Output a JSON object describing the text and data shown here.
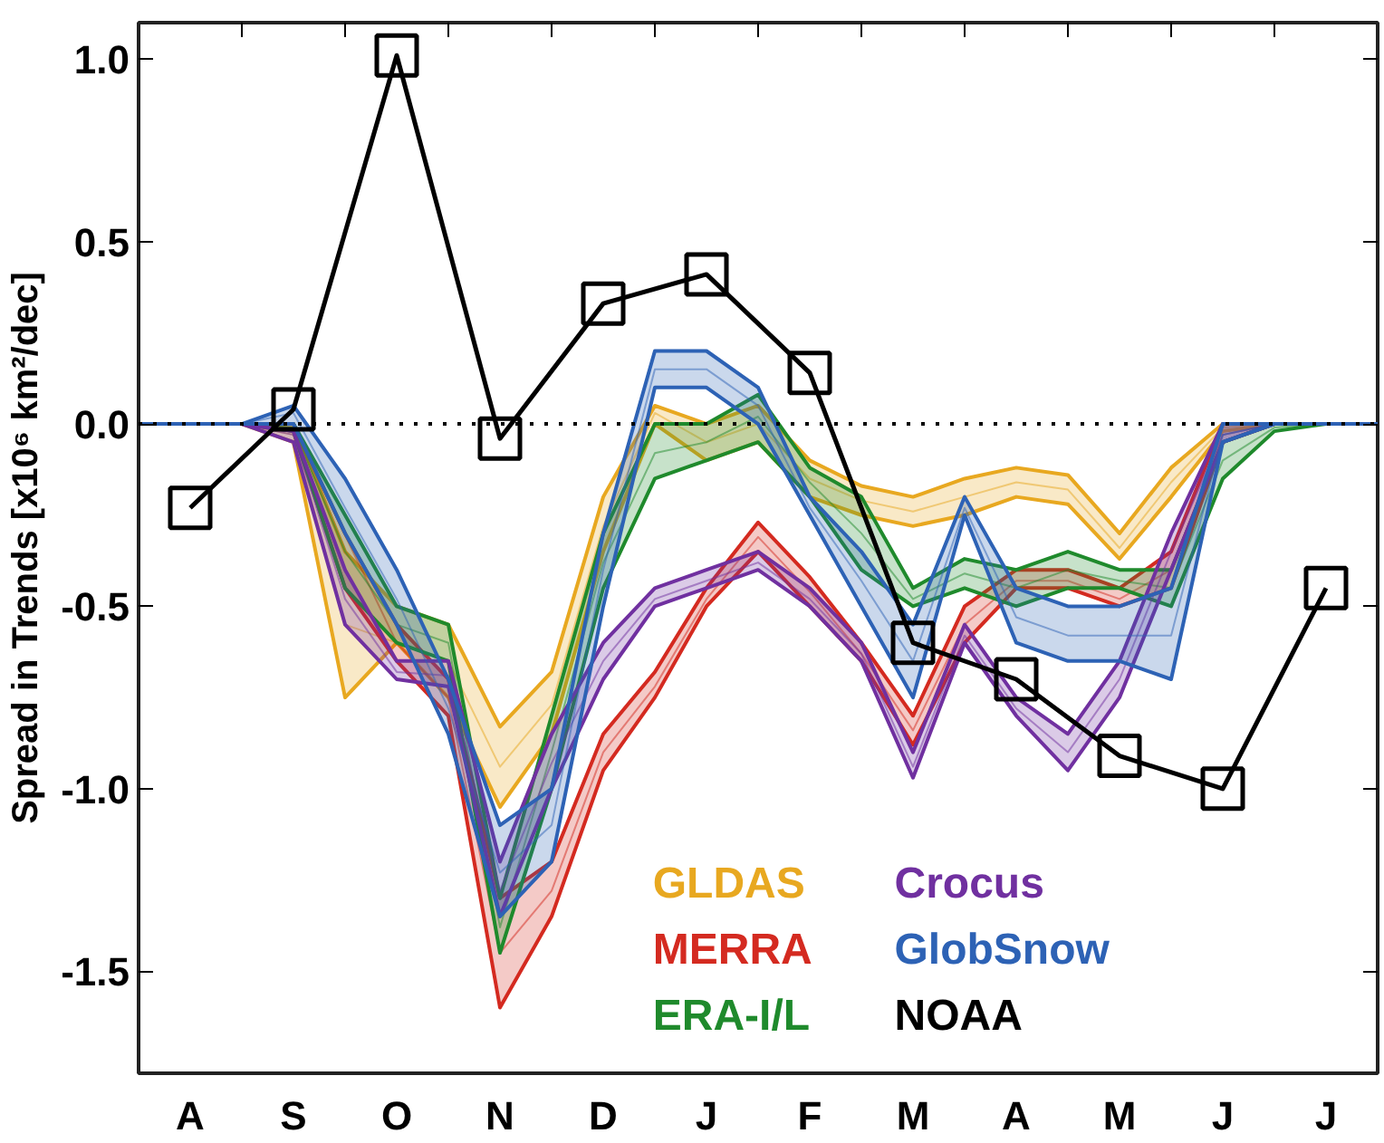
{
  "chart_data": {
    "type": "line",
    "ylabel": "Spread in Trends [x10⁶ km²/dec]",
    "categories": [
      null,
      "A",
      null,
      "S",
      null,
      "O",
      null,
      "N",
      null,
      "D",
      null,
      "J",
      null,
      "F",
      null,
      "M",
      null,
      "A",
      null,
      "M",
      null,
      "J",
      null,
      "J",
      null
    ],
    "ylim": [
      -1.78,
      1.1
    ],
    "yticks": [
      {
        "value": 1.0,
        "label": "1.0"
      },
      {
        "value": 0.5,
        "label": "0.5"
      },
      {
        "value": 0.0,
        "label": "0.0"
      },
      {
        "value": -0.5,
        "label": "-0.5"
      },
      {
        "value": -1.0,
        "label": "-1.0"
      },
      {
        "value": -1.5,
        "label": "-1.5"
      }
    ],
    "grid": false,
    "legend": "bottom right",
    "ref_lines": [
      {
        "axis": "y",
        "value": 0,
        "line_style": "dotted",
        "color": "#000000"
      }
    ],
    "series": [
      {
        "name": "GLDAS",
        "color": "#e8a820",
        "values": [
          0,
          0,
          0,
          -0.03,
          -0.55,
          null,
          -0.65,
          -0.94,
          -0.77,
          -0.28,
          0.03,
          -0.05,
          0,
          -0.15,
          -0.21,
          -0.24,
          -0.2,
          -0.16,
          -0.18,
          -0.34,
          -0.16,
          -0.01,
          0,
          null,
          null
        ],
        "lower": [
          0,
          0,
          0,
          -0.05,
          -0.75,
          -0.6,
          -0.75,
          -1.05,
          -0.85,
          -0.35,
          0.0,
          -0.1,
          -0.05,
          -0.2,
          -0.25,
          -0.28,
          -0.25,
          -0.2,
          -0.22,
          -0.37,
          -0.2,
          -0.02,
          0,
          0,
          0
        ],
        "upper": [
          0,
          0,
          0,
          0,
          -0.35,
          -0.5,
          -0.55,
          -0.83,
          -0.68,
          -0.2,
          0.05,
          0,
          0.05,
          -0.1,
          -0.17,
          -0.2,
          -0.15,
          -0.12,
          -0.14,
          -0.3,
          -0.12,
          0,
          0,
          0,
          0
        ]
      },
      {
        "name": "MERRA",
        "color": "#d42a20",
        "values": [
          0,
          0,
          0,
          -0.01,
          null,
          -0.6,
          -0.75,
          -1.45,
          -1.28,
          -0.9,
          -0.72,
          -0.48,
          -0.31,
          -0.46,
          -0.63,
          -0.84,
          -0.55,
          -0.43,
          -0.43,
          -0.48,
          -0.4,
          -0.03,
          0,
          null,
          null
        ],
        "lower": [
          0,
          0,
          0,
          -0.02,
          -0.45,
          -0.65,
          -0.8,
          -1.6,
          -1.35,
          -0.95,
          -0.75,
          -0.5,
          -0.35,
          -0.5,
          -0.65,
          -0.88,
          -0.6,
          -0.45,
          -0.45,
          -0.5,
          -0.45,
          -0.05,
          0,
          0,
          0
        ],
        "upper": [
          0,
          0,
          0,
          0,
          -0.3,
          -0.55,
          -0.7,
          -1.3,
          -1.2,
          -0.85,
          -0.68,
          -0.45,
          -0.27,
          -0.42,
          -0.6,
          -0.8,
          -0.5,
          -0.4,
          -0.4,
          -0.45,
          -0.35,
          0,
          0,
          0,
          0
        ]
      },
      {
        "name": "ERA-I/L",
        "color": "#1f8a2c",
        "values": [
          0,
          0,
          0,
          -0.01,
          -0.35,
          -0.55,
          -0.6,
          -1.38,
          -0.9,
          -0.38,
          -0.08,
          -0.05,
          0.02,
          -0.16,
          -0.3,
          -0.48,
          -0.41,
          -0.45,
          -0.4,
          -0.43,
          -0.45,
          -0.1,
          -0.01,
          0,
          0
        ],
        "lower": [
          0,
          0,
          0,
          -0.02,
          -0.45,
          -0.6,
          -0.65,
          -1.45,
          -1.0,
          -0.45,
          -0.15,
          -0.1,
          -0.05,
          -0.2,
          -0.4,
          -0.5,
          -0.45,
          -0.5,
          -0.45,
          -0.45,
          -0.5,
          -0.15,
          -0.02,
          0,
          0
        ],
        "upper": [
          0,
          0,
          0,
          0,
          -0.25,
          -0.5,
          -0.55,
          -1.3,
          -0.8,
          -0.3,
          0,
          0,
          0.08,
          -0.12,
          -0.2,
          -0.45,
          -0.37,
          -0.4,
          -0.35,
          -0.4,
          -0.4,
          -0.05,
          0,
          0,
          0
        ]
      },
      {
        "name": "Crocus",
        "color": "#7030a0",
        "values": [
          0,
          0,
          0,
          -0.03,
          -0.48,
          -0.68,
          -0.69,
          -1.28,
          -0.93,
          -0.65,
          -0.48,
          -0.43,
          -0.38,
          -0.48,
          -0.63,
          -0.94,
          -0.58,
          -0.78,
          -0.9,
          -0.7,
          -0.35,
          -0.03,
          0,
          0,
          0
        ],
        "lower": [
          0,
          0,
          0,
          -0.05,
          -0.55,
          -0.7,
          -0.72,
          -1.35,
          -1.0,
          -0.7,
          -0.5,
          -0.45,
          -0.4,
          -0.5,
          -0.65,
          -0.97,
          -0.6,
          -0.8,
          -0.95,
          -0.75,
          -0.4,
          -0.05,
          0,
          0,
          0
        ],
        "upper": [
          0,
          0,
          0,
          -0.02,
          -0.4,
          -0.65,
          -0.65,
          -1.2,
          -0.85,
          -0.6,
          -0.45,
          -0.4,
          -0.35,
          -0.45,
          -0.6,
          -0.9,
          -0.55,
          -0.75,
          -0.85,
          -0.65,
          -0.3,
          0,
          0,
          0,
          0
        ]
      },
      {
        "name": "GlobSnow",
        "color": "#2d62b5",
        "values": [
          0,
          0,
          0,
          0.03,
          -0.23,
          -0.48,
          -0.78,
          -1.23,
          -1.1,
          -0.4,
          0.15,
          0.15,
          0.05,
          -0.23,
          -0.43,
          -0.65,
          -0.23,
          -0.53,
          -0.58,
          -0.58,
          -0.58,
          -0.03,
          0,
          0,
          0
        ],
        "lower": [
          0,
          0,
          0,
          0,
          -0.3,
          -0.55,
          -0.85,
          -1.35,
          -1.2,
          -0.5,
          0.1,
          0.1,
          0,
          -0.25,
          -0.5,
          -0.75,
          -0.25,
          -0.6,
          -0.65,
          -0.65,
          -0.7,
          -0.05,
          0,
          0,
          0
        ],
        "upper": [
          0,
          0,
          0,
          0.05,
          -0.15,
          -0.4,
          -0.7,
          -1.1,
          -1.0,
          -0.3,
          0.2,
          0.2,
          0.1,
          -0.2,
          -0.35,
          -0.55,
          -0.2,
          -0.45,
          -0.5,
          -0.5,
          -0.45,
          0,
          0,
          0,
          0
        ]
      },
      {
        "name": "NOAA",
        "color": "#000000",
        "marker": "square",
        "values": [
          null,
          -0.23,
          null,
          0.04,
          null,
          1.01,
          null,
          -0.04,
          null,
          0.33,
          null,
          0.41,
          null,
          0.14,
          null,
          -0.6,
          null,
          -0.7,
          null,
          -0.91,
          null,
          -1.0,
          null,
          -0.45,
          null
        ]
      }
    ]
  }
}
